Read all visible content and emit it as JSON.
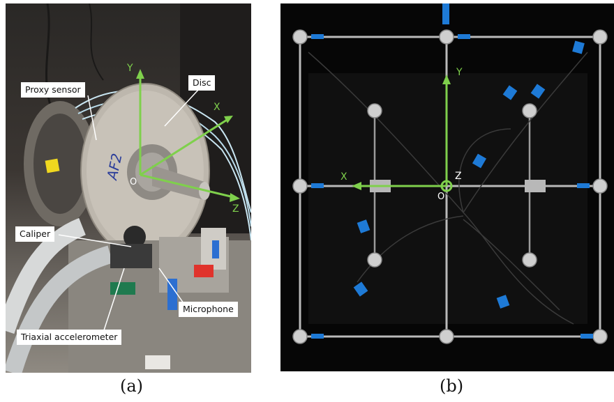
{
  "panel_a": {
    "caption": "(a)",
    "labels": {
      "proxy_sensor": "Proxy sensor",
      "disc": "Disc",
      "caliper": "Caliper",
      "microphone": "Microphone",
      "triaxial_accelerometer": "Triaxial accelerometer"
    },
    "axes": {
      "x": "X",
      "y": "Y",
      "z": "Z",
      "origin": "O"
    },
    "disc_marking": "AF2"
  },
  "panel_b": {
    "caption": "(b)",
    "axes": {
      "x": "X",
      "y": "Y",
      "z": "Z",
      "origin": "O"
    }
  },
  "colors": {
    "axis": "#7fd04c",
    "tag": "#1e7ad6"
  }
}
